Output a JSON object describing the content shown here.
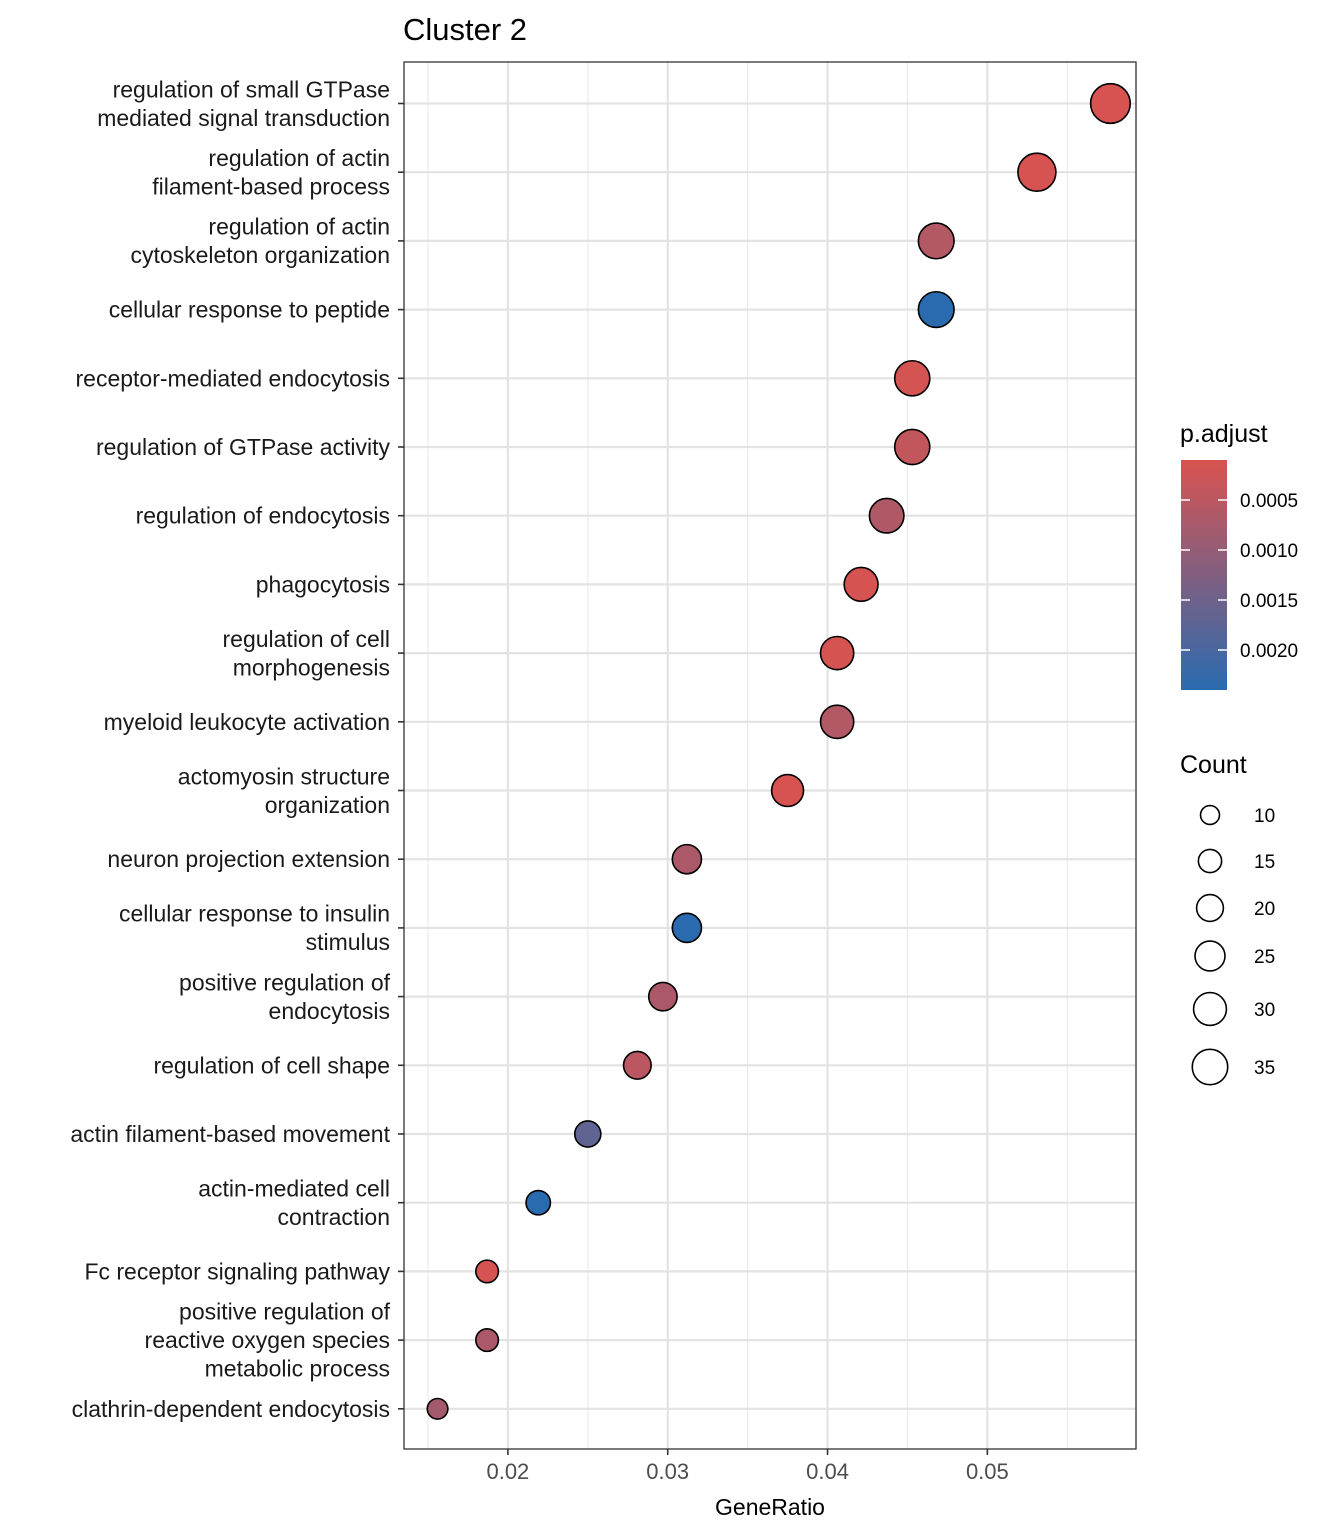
{
  "chart_data": {
    "type": "scatter",
    "title": "Cluster 2",
    "xlabel": "GeneRatio",
    "ylabel": "",
    "xlim": [
      0.0135,
      0.0593
    ],
    "xticks": [
      "0.02",
      "0.03",
      "0.04",
      "0.05"
    ],
    "xtick_values": [
      0.02,
      0.03,
      0.04,
      0.05
    ],
    "grid": true,
    "legend_position": "right",
    "terms": [
      {
        "label": "regulation of small GTPase\nmediated signal transduction",
        "x": 0.0577,
        "count": 37,
        "p_adjust": 0.00012
      },
      {
        "label": "regulation of actin\nfilament-based process",
        "x": 0.0531,
        "count": 34,
        "p_adjust": 0.00012
      },
      {
        "label": "regulation of actin\ncytoskeleton organization",
        "x": 0.0468,
        "count": 30,
        "p_adjust": 0.0006
      },
      {
        "label": "cellular response to peptide",
        "x": 0.0468,
        "count": 30,
        "p_adjust": 0.0024
      },
      {
        "label": "receptor-mediated endocytosis",
        "x": 0.0453,
        "count": 29,
        "p_adjust": 0.00018
      },
      {
        "label": "regulation of GTPase activity",
        "x": 0.0453,
        "count": 29,
        "p_adjust": 0.0004
      },
      {
        "label": "regulation of endocytosis",
        "x": 0.0437,
        "count": 28,
        "p_adjust": 0.00065
      },
      {
        "label": "phagocytosis",
        "x": 0.0421,
        "count": 27,
        "p_adjust": 0.00015
      },
      {
        "label": "regulation of cell\nmorphogenesis",
        "x": 0.0406,
        "count": 26,
        "p_adjust": 0.00015
      },
      {
        "label": "myeloid leukocyte activation",
        "x": 0.0406,
        "count": 26,
        "p_adjust": 0.0006
      },
      {
        "label": "actomyosin structure\norganization",
        "x": 0.0375,
        "count": 24,
        "p_adjust": 0.00012
      },
      {
        "label": "neuron projection extension",
        "x": 0.0312,
        "count": 20,
        "p_adjust": 0.0007
      },
      {
        "label": "cellular response to insulin\nstimulus",
        "x": 0.0312,
        "count": 20,
        "p_adjust": 0.0024
      },
      {
        "label": "positive regulation of\nendocytosis",
        "x": 0.0297,
        "count": 19,
        "p_adjust": 0.0007
      },
      {
        "label": "regulation of cell shape",
        "x": 0.0281,
        "count": 18,
        "p_adjust": 0.0005
      },
      {
        "label": "actin filament-based movement",
        "x": 0.025,
        "count": 16,
        "p_adjust": 0.0017
      },
      {
        "label": "actin-mediated cell\ncontraction",
        "x": 0.0219,
        "count": 14,
        "p_adjust": 0.0024
      },
      {
        "label": "Fc receptor signaling pathway",
        "x": 0.0187,
        "count": 12,
        "p_adjust": 0.00015
      },
      {
        "label": "positive regulation of\nreactive oxygen species\nmetabolic process",
        "x": 0.0187,
        "count": 12,
        "p_adjust": 0.0007
      },
      {
        "label": "clathrin-dependent endocytosis",
        "x": 0.0156,
        "count": 10,
        "p_adjust": 0.0008
      }
    ],
    "color_legend": {
      "title": "p.adjust",
      "range": [
        0.0001,
        0.0024
      ],
      "low_color": "#d95350",
      "high_color": "#2a6bb0",
      "breaks": [
        0.0005,
        0.001,
        0.0015,
        0.002
      ],
      "labels": [
        "0.0005",
        "0.0010",
        "0.0015",
        "0.0020"
      ]
    },
    "size_legend": {
      "title": "Count",
      "breaks": [
        10,
        15,
        20,
        25,
        30,
        35
      ],
      "labels": [
        "10",
        "15",
        "20",
        "25",
        "30",
        "35"
      ]
    }
  }
}
